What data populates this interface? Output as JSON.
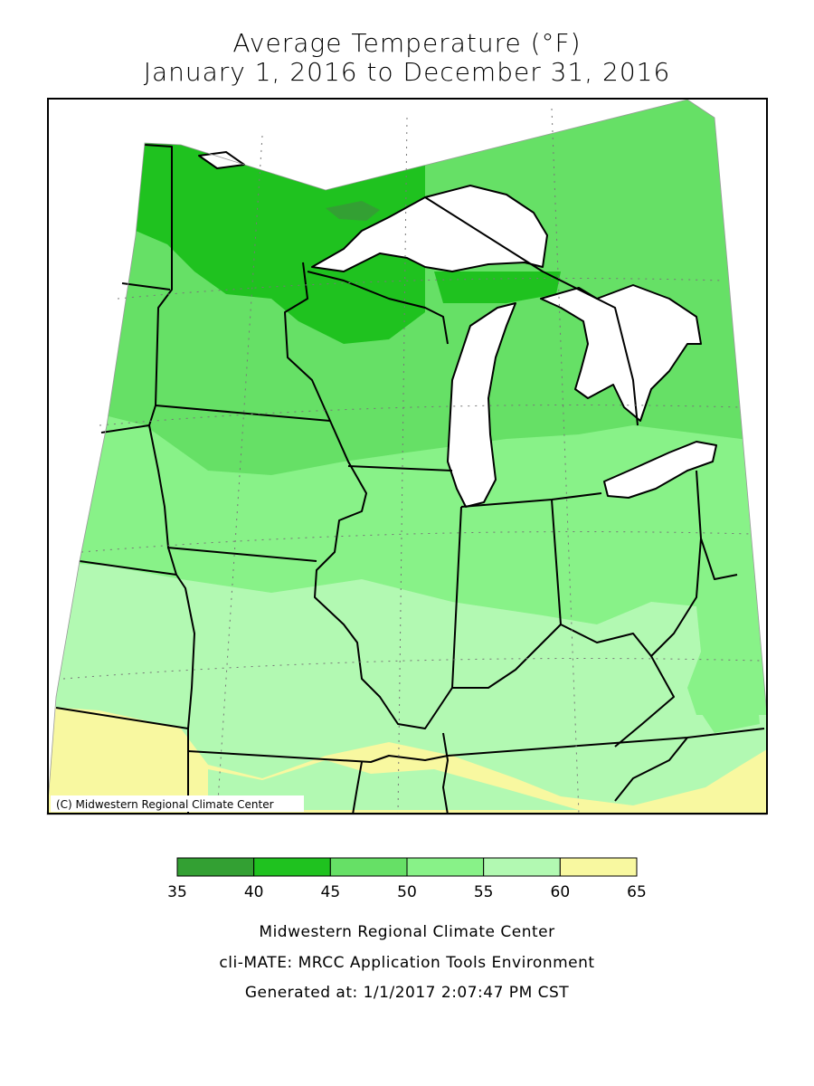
{
  "title": {
    "line1": "Average Temperature (°F)",
    "line2": "January 1, 2016 to December 31, 2016"
  },
  "map": {
    "credit": "(C) Midwestern Regional Climate Center",
    "water_color": "#ffffff",
    "border_color": "#000000"
  },
  "legend": {
    "bins": [
      {
        "from": 35,
        "to": 40,
        "color": "#33a033"
      },
      {
        "from": 40,
        "to": 45,
        "color": "#1fc21f"
      },
      {
        "from": 45,
        "to": 50,
        "color": "#66e066"
      },
      {
        "from": 50,
        "to": 55,
        "color": "#88f288"
      },
      {
        "from": 55,
        "to": 60,
        "color": "#b2f9b2"
      },
      {
        "from": 60,
        "to": 65,
        "color": "#f8f8a0"
      }
    ],
    "labels": [
      "35",
      "40",
      "45",
      "50",
      "55",
      "60",
      "65"
    ]
  },
  "footer": {
    "line1": "Midwestern Regional Climate Center",
    "line2": "cli-MATE: MRCC Application Tools Environment",
    "line3": "Generated at: 1/1/2017 2:07:47 PM CST"
  }
}
